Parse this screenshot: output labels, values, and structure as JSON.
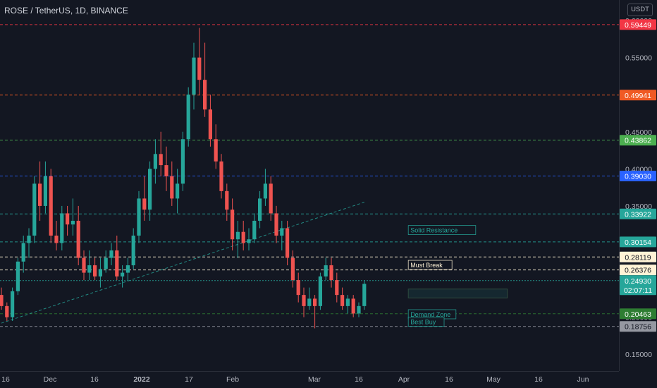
{
  "header": {
    "symbol": "ROSE / TetherUS, 1D, BINANCE",
    "currency_button": "USDT"
  },
  "chart_data": {
    "type": "candlestick",
    "title": "ROSE / TetherUS, 1D, BINANCE",
    "ylim": [
      0.135,
      0.62
    ],
    "y_tick_labels": [
      "0.60000",
      "0.55000",
      "0.50000",
      "0.45000",
      "0.40000",
      "0.35000",
      "0.30000",
      "0.25000",
      "0.20000",
      "0.15000"
    ],
    "x_tick_labels": [
      "16",
      "Dec",
      "16",
      "2022",
      "17",
      "Feb",
      "Mar",
      "16",
      "Apr",
      "16",
      "May",
      "16",
      "Jun"
    ],
    "grid": false,
    "colors": {
      "up": "#26a69a",
      "down": "#ef5350",
      "background": "#131722"
    },
    "price_levels": [
      {
        "value": 0.59449,
        "label": "0.59449",
        "color": "#f23645",
        "style": "dashed"
      },
      {
        "value": 0.49941,
        "label": "0.49941",
        "color": "#f05a24",
        "style": "dashed"
      },
      {
        "value": 0.43862,
        "label": "0.43862",
        "color": "#4caf50",
        "style": "dashed"
      },
      {
        "value": 0.3903,
        "label": "0.39030",
        "color": "#2962ff",
        "style": "dashed"
      },
      {
        "value": 0.33922,
        "label": "0.33922",
        "color": "#26a69a",
        "style": "dashed"
      },
      {
        "value": 0.30154,
        "label": "0.30154",
        "color": "#26a69a",
        "style": "dashed"
      },
      {
        "value": 0.28119,
        "label": "0.28119",
        "color": "#fff3d6",
        "style": "dashed"
      },
      {
        "value": 0.26376,
        "label": "0.26376",
        "color": "#fff3d6",
        "style": "dashed"
      },
      {
        "value": 0.2493,
        "label": "0.24930",
        "color": "#26a69a",
        "style": "dotted",
        "countdown": "02:07:11"
      },
      {
        "value": 0.20463,
        "label": "0.20463",
        "color": "#2e7d32",
        "style": "dashed"
      },
      {
        "value": 0.18756,
        "label": "0.18756",
        "color": "#9598a1",
        "style": "dashed"
      }
    ],
    "trendline": {
      "from": [
        0,
        0.192
      ],
      "to": [
        66,
        0.355
      ]
    },
    "annotations": [
      {
        "text": "Solid Resistance",
        "anchor_index": 74,
        "value": 0.317,
        "color": "#26a69a"
      },
      {
        "text": "Must Break",
        "anchor_index": 74,
        "value": 0.27,
        "color": "#fff3d6"
      },
      {
        "text": "Demand Zone",
        "anchor_index": 74,
        "value": 0.2035,
        "color": "#26a69a"
      },
      {
        "text": "Best Buy",
        "anchor_index": 74,
        "value": 0.1935,
        "color": "#26a69a"
      }
    ],
    "zone": {
      "from_index": 74,
      "to_index": 92,
      "low": 0.226,
      "high": 0.238
    },
    "ohlc": [
      [
        0.23,
        0.24,
        0.21,
        0.215
      ],
      [
        0.215,
        0.22,
        0.195,
        0.2
      ],
      [
        0.2,
        0.24,
        0.195,
        0.235
      ],
      [
        0.235,
        0.28,
        0.23,
        0.275
      ],
      [
        0.275,
        0.31,
        0.26,
        0.3
      ],
      [
        0.3,
        0.32,
        0.28,
        0.31
      ],
      [
        0.31,
        0.39,
        0.3,
        0.38
      ],
      [
        0.38,
        0.41,
        0.33,
        0.35
      ],
      [
        0.35,
        0.41,
        0.34,
        0.39
      ],
      [
        0.39,
        0.4,
        0.3,
        0.31
      ],
      [
        0.31,
        0.33,
        0.29,
        0.3
      ],
      [
        0.3,
        0.35,
        0.29,
        0.34
      ],
      [
        0.34,
        0.35,
        0.31,
        0.325
      ],
      [
        0.325,
        0.36,
        0.31,
        0.33
      ],
      [
        0.33,
        0.35,
        0.27,
        0.28
      ],
      [
        0.28,
        0.29,
        0.25,
        0.26
      ],
      [
        0.26,
        0.29,
        0.25,
        0.27
      ],
      [
        0.27,
        0.28,
        0.25,
        0.255
      ],
      [
        0.255,
        0.28,
        0.24,
        0.265
      ],
      [
        0.265,
        0.29,
        0.26,
        0.28
      ],
      [
        0.28,
        0.3,
        0.27,
        0.29
      ],
      [
        0.29,
        0.31,
        0.25,
        0.255
      ],
      [
        0.255,
        0.27,
        0.24,
        0.26
      ],
      [
        0.26,
        0.28,
        0.25,
        0.27
      ],
      [
        0.27,
        0.32,
        0.265,
        0.31
      ],
      [
        0.31,
        0.37,
        0.3,
        0.36
      ],
      [
        0.36,
        0.39,
        0.33,
        0.345
      ],
      [
        0.345,
        0.41,
        0.33,
        0.4
      ],
      [
        0.4,
        0.44,
        0.38,
        0.42
      ],
      [
        0.42,
        0.45,
        0.39,
        0.405
      ],
      [
        0.405,
        0.43,
        0.37,
        0.39
      ],
      [
        0.39,
        0.41,
        0.35,
        0.36
      ],
      [
        0.36,
        0.4,
        0.34,
        0.38
      ],
      [
        0.38,
        0.45,
        0.37,
        0.44
      ],
      [
        0.44,
        0.51,
        0.43,
        0.5
      ],
      [
        0.5,
        0.57,
        0.48,
        0.55
      ],
      [
        0.55,
        0.59,
        0.5,
        0.52
      ],
      [
        0.52,
        0.57,
        0.47,
        0.48
      ],
      [
        0.48,
        0.5,
        0.43,
        0.44
      ],
      [
        0.44,
        0.46,
        0.4,
        0.41
      ],
      [
        0.41,
        0.42,
        0.36,
        0.37
      ],
      [
        0.37,
        0.38,
        0.33,
        0.345
      ],
      [
        0.345,
        0.36,
        0.29,
        0.305
      ],
      [
        0.305,
        0.33,
        0.28,
        0.315
      ],
      [
        0.315,
        0.33,
        0.29,
        0.3
      ],
      [
        0.3,
        0.32,
        0.29,
        0.305
      ],
      [
        0.305,
        0.34,
        0.3,
        0.33
      ],
      [
        0.33,
        0.37,
        0.32,
        0.36
      ],
      [
        0.36,
        0.4,
        0.35,
        0.38
      ],
      [
        0.38,
        0.39,
        0.33,
        0.34
      ],
      [
        0.34,
        0.35,
        0.3,
        0.31
      ],
      [
        0.31,
        0.33,
        0.29,
        0.32
      ],
      [
        0.32,
        0.33,
        0.27,
        0.28
      ],
      [
        0.28,
        0.29,
        0.24,
        0.25
      ],
      [
        0.25,
        0.26,
        0.22,
        0.23
      ],
      [
        0.23,
        0.24,
        0.2,
        0.215
      ],
      [
        0.215,
        0.24,
        0.21,
        0.225
      ],
      [
        0.225,
        0.23,
        0.185,
        0.215
      ],
      [
        0.215,
        0.26,
        0.21,
        0.255
      ],
      [
        0.255,
        0.28,
        0.25,
        0.27
      ],
      [
        0.27,
        0.28,
        0.24,
        0.25
      ],
      [
        0.25,
        0.26,
        0.22,
        0.23
      ],
      [
        0.23,
        0.24,
        0.21,
        0.215
      ],
      [
        0.215,
        0.23,
        0.205,
        0.225
      ],
      [
        0.225,
        0.23,
        0.2,
        0.205
      ],
      [
        0.205,
        0.22,
        0.2,
        0.215
      ],
      [
        0.215,
        0.25,
        0.21,
        0.245
      ]
    ]
  }
}
